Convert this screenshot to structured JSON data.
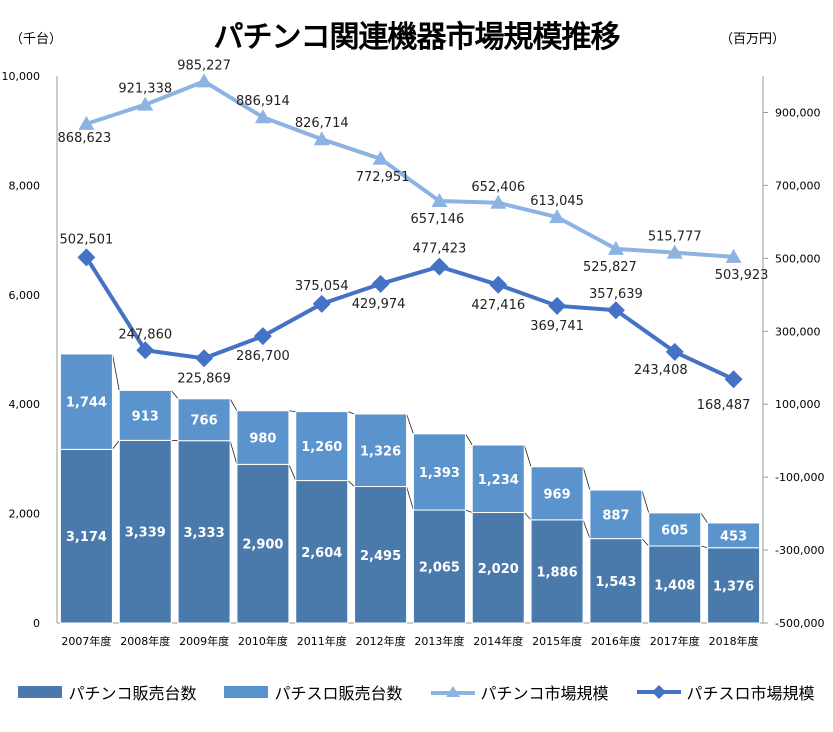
{
  "chart_data": {
    "type": "bar+line",
    "title": "パチンコ関連機器市場規模推移",
    "ylabel_left": "（千台）",
    "ylabel_right": "（百万円）",
    "categories": [
      "2007年度",
      "2008年度",
      "2009年度",
      "2010年度",
      "2011年度",
      "2012年度",
      "2013年度",
      "2014年度",
      "2015年度",
      "2016年度",
      "2017年度",
      "2018年度"
    ],
    "ylim_left": [
      0,
      10000
    ],
    "yticks_left": [
      "0",
      "2,000",
      "4,000",
      "6,000",
      "8,000",
      "10,000"
    ],
    "ylim_right": [
      -500000,
      1000000
    ],
    "yticks_right": [
      "-500,000",
      "-300,000",
      "-100,000",
      "100,000",
      "300,000",
      "500,000",
      "700,000",
      "900,000"
    ],
    "legend_position": "bottom",
    "bar_series": [
      {
        "name": "パチンコ販売台数",
        "color": "#4a7aab",
        "values": [
          3174,
          3339,
          3333,
          2900,
          2604,
          2495,
          2065,
          2020,
          1886,
          1543,
          1408,
          1376
        ],
        "labels": [
          "3,174",
          "3,339",
          "3,333",
          "2,900",
          "2,604",
          "2,495",
          "2,065",
          "2,020",
          "1,886",
          "1,543",
          "1,408",
          "1,376"
        ]
      },
      {
        "name": "パチスロ販売台数",
        "color": "#5b93cc",
        "values": [
          1744,
          913,
          766,
          980,
          1260,
          1326,
          1393,
          1234,
          969,
          887,
          605,
          453
        ],
        "labels": [
          "1,744",
          "913",
          "766",
          "980",
          "1,260",
          "1,326",
          "1,393",
          "1,234",
          "969",
          "887",
          "605",
          "453"
        ]
      }
    ],
    "line_series": [
      {
        "name": "パチンコ市場規模",
        "color": "#8db3e2",
        "marker": "triangle",
        "values": [
          868623,
          921338,
          985227,
          886914,
          826714,
          772951,
          657146,
          652406,
          613045,
          525827,
          515777,
          503923
        ],
        "labels": [
          "868,623",
          "921,338",
          "985,227",
          "886,914",
          "826,714",
          "772,951",
          "657,146",
          "652,406",
          "613,045",
          "525,827",
          "515,777",
          "503,923"
        ]
      },
      {
        "name": "パチスロ市場規模",
        "color": "#4472c4",
        "marker": "diamond",
        "values": [
          502501,
          247860,
          225869,
          286700,
          375054,
          429974,
          477423,
          427416,
          369741,
          357639,
          243408,
          168487
        ],
        "labels": [
          "502,501",
          "247,860",
          "225,869",
          "286,700",
          "375,054",
          "429,974",
          "477,423",
          "427,416",
          "369,741",
          "357,639",
          "243,408",
          "168,487"
        ]
      }
    ]
  }
}
